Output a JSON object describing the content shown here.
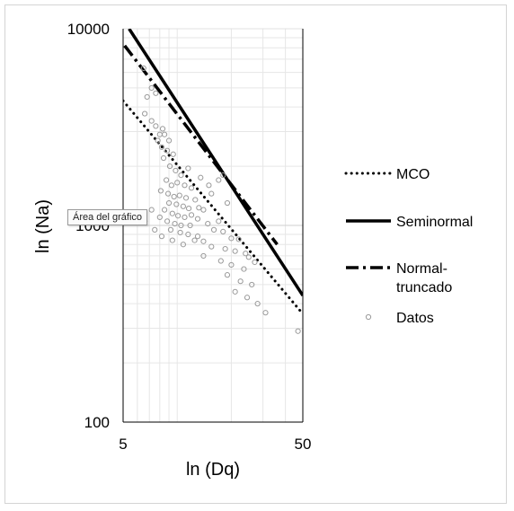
{
  "chart_data": {
    "type": "scatter",
    "xlabel": "ln (Dq)",
    "ylabel": "ln (Na)",
    "x_scale": "log",
    "y_scale": "log",
    "xlim": [
      5,
      50
    ],
    "ylim": [
      100,
      10000
    ],
    "x_ticks": [
      "5",
      "50"
    ],
    "y_ticks": [
      "100",
      "1000",
      "10000"
    ],
    "grid": true,
    "legend_position": "right",
    "tooltip": "Área del gráfico",
    "series": [
      {
        "name": "MCO",
        "style": "dotted",
        "color": "#000000",
        "x": [
          5,
          50
        ],
        "y": [
          4300,
          355
        ]
      },
      {
        "name": "Seminormal",
        "style": "solid",
        "color": "#000000",
        "x": [
          5.4,
          50
        ],
        "y": [
          10000,
          440
        ]
      },
      {
        "name": "Normal-truncado",
        "style": "dashdot",
        "color": "#000000",
        "x": [
          5.1,
          36
        ],
        "y": [
          8200,
          800
        ]
      },
      {
        "name": "Datos",
        "style": "marker",
        "color": "#9a9a9a",
        "points": [
          [
            6.5,
            6300
          ],
          [
            7.2,
            5000
          ],
          [
            7.6,
            4700
          ],
          [
            6.8,
            4500
          ],
          [
            6.6,
            3700
          ],
          [
            7.2,
            3400
          ],
          [
            7.6,
            3200
          ],
          [
            8.3,
            3100
          ],
          [
            8.0,
            2900
          ],
          [
            8.5,
            2900
          ],
          [
            7.8,
            2700
          ],
          [
            9.0,
            2700
          ],
          [
            8.2,
            2500
          ],
          [
            8.8,
            2400
          ],
          [
            9.5,
            2300
          ],
          [
            8.4,
            2200
          ],
          [
            9.1,
            2000
          ],
          [
            9.8,
            1900
          ],
          [
            10.5,
            1800
          ],
          [
            8.7,
            1700
          ],
          [
            9.3,
            1600
          ],
          [
            10.0,
            1650
          ],
          [
            11.0,
            1600
          ],
          [
            12.0,
            1550
          ],
          [
            8.1,
            1500
          ],
          [
            8.9,
            1450
          ],
          [
            9.6,
            1400
          ],
          [
            10.3,
            1420
          ],
          [
            11.2,
            1380
          ],
          [
            12.6,
            1350
          ],
          [
            15.5,
            1450
          ],
          [
            9.0,
            1300
          ],
          [
            9.9,
            1280
          ],
          [
            10.8,
            1250
          ],
          [
            11.6,
            1220
          ],
          [
            13.2,
            1230
          ],
          [
            14.0,
            1200
          ],
          [
            8.5,
            1200
          ],
          [
            9.4,
            1150
          ],
          [
            10.1,
            1120
          ],
          [
            11.0,
            1100
          ],
          [
            12.0,
            1130
          ],
          [
            13.0,
            1080
          ],
          [
            8.0,
            1100
          ],
          [
            8.8,
            1050
          ],
          [
            9.7,
            1020
          ],
          [
            10.5,
            1000
          ],
          [
            11.8,
            1000
          ],
          [
            14.8,
            1020
          ],
          [
            17.0,
            1050
          ],
          [
            9.2,
            950
          ],
          [
            10.4,
            920
          ],
          [
            11.5,
            900
          ],
          [
            13.0,
            880
          ],
          [
            16.0,
            950
          ],
          [
            18.0,
            930
          ],
          [
            12.5,
            840
          ],
          [
            14.0,
            830
          ],
          [
            20.0,
            860
          ],
          [
            22.0,
            850
          ],
          [
            15.5,
            780
          ],
          [
            18.5,
            760
          ],
          [
            21.0,
            740
          ],
          [
            24.0,
            720
          ],
          [
            14.0,
            700
          ],
          [
            17.5,
            660
          ],
          [
            20.0,
            630
          ],
          [
            23.5,
            600
          ],
          [
            19.0,
            560
          ],
          [
            22.5,
            520
          ],
          [
            26.0,
            500
          ],
          [
            21.0,
            460
          ],
          [
            24.5,
            430
          ],
          [
            28.0,
            400
          ],
          [
            31.0,
            360
          ],
          [
            47.0,
            290
          ],
          [
            7.2,
            1200
          ],
          [
            6.6,
            1050
          ],
          [
            7.5,
            950
          ],
          [
            8.2,
            880
          ],
          [
            9.4,
            840
          ],
          [
            10.8,
            800
          ],
          [
            25.0,
            690
          ],
          [
            27.0,
            650
          ],
          [
            19.0,
            1300
          ],
          [
            17.0,
            1700
          ],
          [
            18.0,
            1800
          ],
          [
            11.5,
            1950
          ],
          [
            13.5,
            1750
          ],
          [
            15.0,
            1600
          ]
        ]
      }
    ]
  }
}
